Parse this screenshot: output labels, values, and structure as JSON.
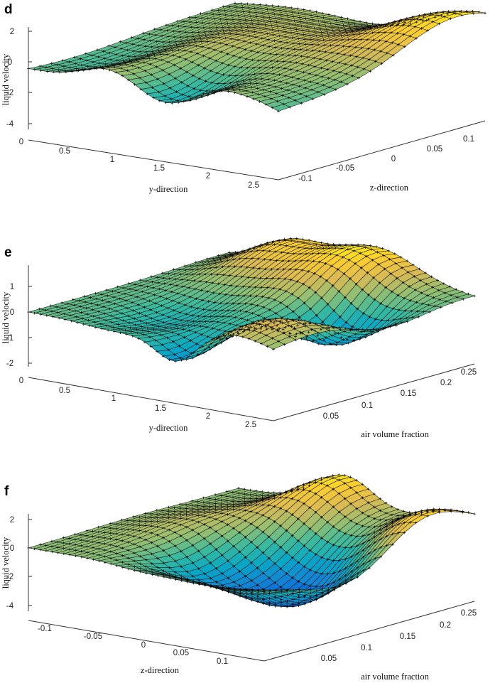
{
  "figure": {
    "panels": [
      "d",
      "e",
      "f"
    ]
  },
  "chart_data": [
    {
      "panel": "d",
      "type": "surface",
      "zlabel": "liquid velocity",
      "xlabel": "y-direction",
      "ylabel": "z-direction",
      "zticks": [
        -4,
        -2,
        0,
        2
      ],
      "zlim": [
        -4.5,
        2.8
      ],
      "xticks": [
        "0",
        "0.5",
        "1",
        "1.5",
        "2",
        "2.5"
      ],
      "yticks": [
        "-0.1",
        "-0.05",
        "0",
        "0.05",
        "0.1"
      ],
      "xrange": [
        0,
        2.6
      ],
      "yrange": [
        -0.12,
        0.12
      ],
      "grid": [
        40,
        18
      ],
      "colormap": "parula",
      "markers": "plus"
    },
    {
      "panel": "e",
      "type": "surface",
      "zlabel": "liquid velocity",
      "xlabel": "y-direction",
      "ylabel": "air volume fraction",
      "zticks": [
        -2,
        -1,
        0,
        1
      ],
      "zlim": [
        -2.2,
        1.7
      ],
      "xticks": [
        "0",
        "0.5",
        "1",
        "1.5",
        "2",
        "2.5"
      ],
      "yticks": [
        "0.05",
        "0.1",
        "0.15",
        "0.2",
        "0.25"
      ],
      "xrange": [
        0,
        2.6
      ],
      "yrange": [
        0.02,
        0.27
      ],
      "grid": [
        40,
        18
      ],
      "colormap": "parula",
      "markers": "plus"
    },
    {
      "panel": "f",
      "type": "surface",
      "zlabel": "liquid velocity",
      "xlabel": "z-direction",
      "ylabel": "air volume fraction",
      "zticks": [
        -4,
        -2,
        0,
        2
      ],
      "zlim": [
        -4.5,
        2.8
      ],
      "xticks": [
        "-0.1",
        "-0.05",
        "0",
        "0.05",
        "0.1"
      ],
      "yticks": [
        "0.05",
        "0.1",
        "0.15",
        "0.2",
        "0.25"
      ],
      "xrange": [
        -0.14,
        0.14
      ],
      "yrange": [
        0.02,
        0.27
      ],
      "grid": [
        40,
        18
      ],
      "colormap": "parula",
      "markers": "plus"
    }
  ]
}
